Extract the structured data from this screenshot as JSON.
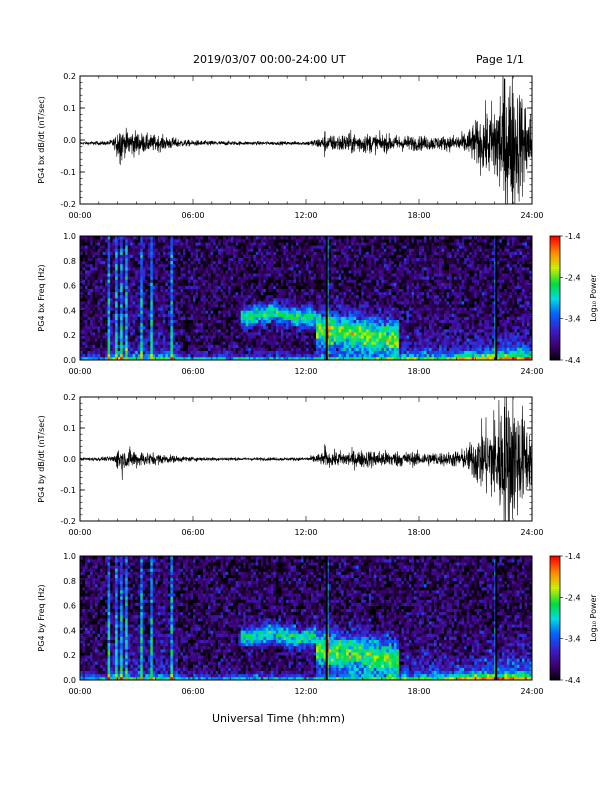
{
  "header": {
    "title": "2019/03/07  00:00-24:00 UT",
    "page": "Page 1/1"
  },
  "xaxis_title": "Universal Time (hh:mm)",
  "colorbar": {
    "label": "Log₁₀ Power",
    "ticks": [
      "-1.4",
      "-2.4",
      "-3.4",
      "-4.4"
    ]
  },
  "chart_data": [
    {
      "type": "line",
      "ylabel": "PG4 bx dB/dt (nT/sec)",
      "xlim": [
        0,
        24
      ],
      "ylim": [
        -0.2,
        0.2
      ],
      "xticks": [
        "00:00",
        "06:00",
        "12:00",
        "18:00",
        "24:00"
      ],
      "yticks": [
        "0.2",
        "0.1",
        "0.0",
        "-0.1",
        "-0.2"
      ],
      "envelope": {
        "x_hours": [
          0,
          1.5,
          2.6,
          3.5,
          4.5,
          5.5,
          6,
          9,
          12,
          13,
          14.5,
          16,
          18,
          19.5,
          20.5,
          21,
          21.8,
          22.5,
          23,
          24
        ],
        "amplitude": [
          0.004,
          0.006,
          0.04,
          0.025,
          0.02,
          0.01,
          0.008,
          0.005,
          0.005,
          0.02,
          0.03,
          0.025,
          0.02,
          0.02,
          0.03,
          0.06,
          0.1,
          0.2,
          0.2,
          0.08
        ]
      },
      "baseline": -0.01
    },
    {
      "type": "heatmap",
      "ylabel": "PG4 bx Freq (Hz)",
      "xlim": [
        0,
        24
      ],
      "ylim": [
        0,
        1.0
      ],
      "zlim": [
        -4.4,
        -1.4
      ],
      "xticks": [
        "00:00",
        "06:00",
        "12:00",
        "18:00",
        "24:00"
      ],
      "yticks": [
        "1.0",
        "0.8",
        "0.6",
        "0.4",
        "0.2",
        "0.0"
      ]
    },
    {
      "type": "line",
      "ylabel": "PG4 by dB/dt (nT/sec)",
      "xlim": [
        0,
        24
      ],
      "ylim": [
        -0.2,
        0.2
      ],
      "xticks": [
        "00:00",
        "06:00",
        "12:00",
        "18:00",
        "24:00"
      ],
      "yticks": [
        "0.2",
        "0.1",
        "0.0",
        "-0.1",
        "-0.2"
      ],
      "envelope": {
        "x_hours": [
          0,
          1.5,
          2.6,
          3.5,
          5.0,
          6,
          9,
          12,
          13,
          14.5,
          16,
          18,
          19.5,
          20.5,
          21,
          21.8,
          22.5,
          23,
          24
        ],
        "amplitude": [
          0.004,
          0.006,
          0.03,
          0.02,
          0.01,
          0.006,
          0.004,
          0.005,
          0.02,
          0.025,
          0.025,
          0.02,
          0.02,
          0.03,
          0.07,
          0.12,
          0.2,
          0.2,
          0.08
        ]
      },
      "baseline": 0.0
    },
    {
      "type": "heatmap",
      "ylabel": "PG4 by Freq (Hz)",
      "xlim": [
        0,
        24
      ],
      "ylim": [
        0,
        1.0
      ],
      "zlim": [
        -4.4,
        -1.4
      ],
      "xticks": [
        "00:00",
        "06:00",
        "12:00",
        "18:00",
        "24:00"
      ],
      "yticks": [
        "1.0",
        "0.8",
        "0.6",
        "0.4",
        "0.2",
        "0.0"
      ]
    }
  ]
}
